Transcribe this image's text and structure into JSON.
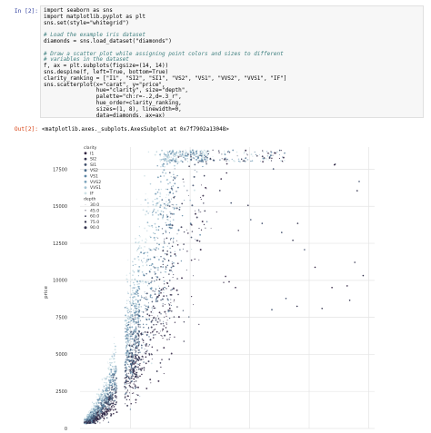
{
  "input_prompt": "In [2]:",
  "output_prompt": "Out[2]:",
  "code_lines": [
    {
      "text": "import seaborn as sns",
      "kind": "code"
    },
    {
      "text": "import matplotlib.pyplot as plt",
      "kind": "code"
    },
    {
      "text": "sns.set(style=\"whitegrid\")",
      "kind": "code"
    },
    {
      "text": "",
      "kind": "code"
    },
    {
      "text": "# Load the example iris dataset",
      "kind": "comment"
    },
    {
      "text": "diamonds = sns.load_dataset(\"diamonds\")",
      "kind": "code"
    },
    {
      "text": "",
      "kind": "code"
    },
    {
      "text": "# Draw a scatter plot while assigning point colors and sizes to different",
      "kind": "comment"
    },
    {
      "text": "# variables in the dataset",
      "kind": "comment"
    },
    {
      "text": "f, ax = plt.subplots(figsize=(14, 14))",
      "kind": "code"
    },
    {
      "text": "sns.despine(f, left=True, bottom=True)",
      "kind": "code"
    },
    {
      "text": "clarity_ranking = [\"I1\", \"SI2\", \"SI1\", \"VS2\", \"VS1\", \"VVS2\", \"VVS1\", \"IF\"]",
      "kind": "code"
    },
    {
      "text": "sns.scatterplot(x=\"carat\", y=\"price\",",
      "kind": "code"
    },
    {
      "text": "                hue=\"clarity\", size=\"depth\",",
      "kind": "code"
    },
    {
      "text": "                palette=\"ch:r=-.2,d=.3_r\",",
      "kind": "code"
    },
    {
      "text": "                hue_order=clarity_ranking,",
      "kind": "code"
    },
    {
      "text": "                sizes=(1, 8), linewidth=0,",
      "kind": "code"
    },
    {
      "text": "                data=diamonds, ax=ax)",
      "kind": "code"
    }
  ],
  "output_text": "<matplotlib.axes._subplots.AxesSubplot at 0x7f7902a13048>",
  "chart_data": {
    "type": "scatter",
    "xlabel": "",
    "ylabel": "price",
    "ylim": [
      0,
      19000
    ],
    "xlim": [
      0.15,
      5.1
    ],
    "y_ticks": [
      "0",
      "2500",
      "5000",
      "7500",
      "10000",
      "12500",
      "15000",
      "17500"
    ],
    "y_tick_values": [
      0,
      2500,
      5000,
      7500,
      10000,
      12500,
      15000,
      17500
    ],
    "grid": true,
    "legend_position": "upper-left",
    "legend_hue_title": "clarity",
    "legend_hue": [
      {
        "label": "I1",
        "color": "#2d1e3e"
      },
      {
        "label": "SI2",
        "color": "#34344f"
      },
      {
        "label": "SI1",
        "color": "#3e4d6b"
      },
      {
        "label": "VS2",
        "color": "#4a6a8a"
      },
      {
        "label": "VS1",
        "color": "#5e87a5"
      },
      {
        "label": "VVS2",
        "color": "#7ea5bd"
      },
      {
        "label": "VVS1",
        "color": "#a4c3d2"
      },
      {
        "label": "IF",
        "color": "#cfe2e6"
      }
    ],
    "legend_size_title": "depth",
    "legend_size": [
      {
        "label": "30.0",
        "value": 30
      },
      {
        "label": "45.0",
        "value": 45
      },
      {
        "label": "60.0",
        "value": 60
      },
      {
        "label": "75.0",
        "value": 75
      },
      {
        "label": "90.0",
        "value": 90
      }
    ],
    "palette": [
      "#2d1e3e",
      "#34344f",
      "#3e4d6b",
      "#4a6a8a",
      "#5e87a5",
      "#7ea5bd",
      "#a4c3d2",
      "#cfe2e6"
    ]
  }
}
